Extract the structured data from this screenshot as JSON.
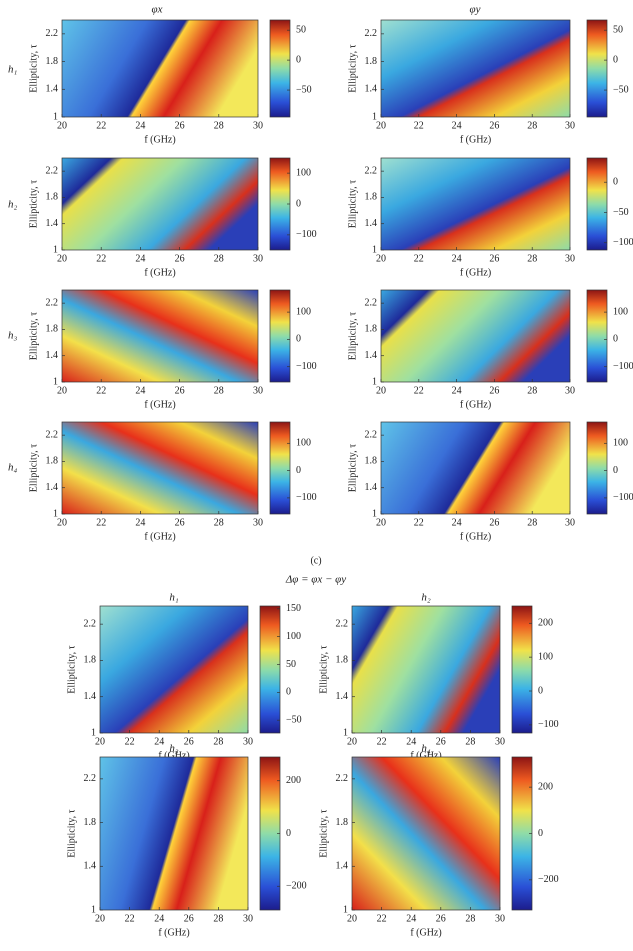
{
  "column_titles": [
    "φx",
    "φy"
  ],
  "row_labels": [
    "h₁",
    "h₂",
    "h₃",
    "h₄"
  ],
  "caption": "(c)",
  "delta_title": "Δφ = φx − φy",
  "chart_data": [
    {
      "type": "heatmap",
      "xlabel": "f (GHz)",
      "ylabel": "Ellipticity, τ",
      "xlim": [
        20,
        30
      ],
      "ylim": [
        1,
        2.4
      ],
      "xticks": [
        20,
        22,
        24,
        26,
        28,
        30
      ],
      "yticks": [
        1,
        1.4,
        1.8,
        2.2
      ],
      "clim": [
        -95,
        67
      ],
      "cticks": [
        50,
        0,
        {
          "value": -50,
          "label": "−50"
        }
      ]
    },
    {
      "type": "heatmap",
      "xlabel": "f (GHz)",
      "ylabel": "Ellipticity, τ",
      "xlim": [
        20,
        30
      ],
      "ylim": [
        1,
        2.4
      ],
      "xticks": [
        20,
        22,
        24,
        26,
        28,
        30
      ],
      "yticks": [
        1,
        1.4,
        1.8,
        2.2
      ],
      "clim": [
        -95,
        67
      ],
      "cticks": [
        50,
        0,
        {
          "value": -50,
          "label": "−50"
        }
      ]
    },
    {
      "type": "heatmap",
      "xlabel": "f (GHz)",
      "ylabel": "Ellipticity, τ",
      "xlim": [
        20,
        30
      ],
      "ylim": [
        1,
        2.4
      ],
      "xticks": [
        20,
        22,
        24,
        26,
        28,
        30
      ],
      "yticks": [
        1,
        1.4,
        1.8,
        2.2
      ],
      "clim": [
        -149,
        149
      ],
      "cticks": [
        100,
        0,
        {
          "value": -100,
          "label": "−100"
        }
      ]
    },
    {
      "type": "heatmap",
      "xlabel": "f (GHz)",
      "ylabel": "Ellipticity, τ",
      "xlim": [
        20,
        30
      ],
      "ylim": [
        1,
        2.4
      ],
      "xticks": [
        20,
        22,
        24,
        26,
        28,
        30
      ],
      "yticks": [
        1,
        1.4,
        1.8,
        2.2
      ],
      "clim": [
        -112,
        40
      ],
      "cticks": [
        0,
        {
          "value": -50,
          "label": "−50"
        },
        {
          "value": -100,
          "label": "−100"
        }
      ]
    },
    {
      "type": "heatmap",
      "xlabel": "f (GHz)",
      "ylabel": "Ellipticity, τ",
      "xlim": [
        20,
        30
      ],
      "ylim": [
        1,
        2.4
      ],
      "xticks": [
        20,
        22,
        24,
        26,
        28,
        30
      ],
      "yticks": [
        1,
        1.4,
        1.8,
        2.2
      ],
      "clim": [
        -156,
        181
      ],
      "cticks": [
        100,
        0,
        {
          "value": -100,
          "label": "−100"
        }
      ]
    },
    {
      "type": "heatmap",
      "xlabel": "f (GHz)",
      "ylabel": "Ellipticity, τ",
      "xlim": [
        20,
        30
      ],
      "ylim": [
        1,
        2.4
      ],
      "xticks": [
        20,
        22,
        24,
        26,
        28,
        30
      ],
      "yticks": [
        1,
        1.4,
        1.8,
        2.2
      ],
      "clim": [
        -156,
        181
      ],
      "cticks": [
        100,
        0,
        {
          "value": -100,
          "label": "−100"
        }
      ]
    },
    {
      "type": "heatmap",
      "xlabel": "f (GHz)",
      "ylabel": "Ellipticity, τ",
      "xlim": [
        20,
        30
      ],
      "ylim": [
        1,
        2.4
      ],
      "xticks": [
        20,
        22,
        24,
        26,
        28,
        30
      ],
      "yticks": [
        1,
        1.4,
        1.8,
        2.2
      ],
      "clim": [
        -159,
        178
      ],
      "cticks": [
        100,
        0,
        {
          "value": -100,
          "label": "−100"
        }
      ]
    },
    {
      "type": "heatmap",
      "xlabel": "f (GHz)",
      "ylabel": "Ellipticity, τ",
      "xlim": [
        20,
        30
      ],
      "ylim": [
        1,
        2.4
      ],
      "xticks": [
        20,
        22,
        24,
        26,
        28,
        30
      ],
      "yticks": [
        1,
        1.4,
        1.8,
        2.2
      ],
      "clim": [
        -159,
        178
      ],
      "cticks": [
        100,
        0,
        {
          "value": -100,
          "label": "−100"
        }
      ]
    },
    {
      "type": "heatmap",
      "title": "h₁",
      "xlabel": "f (GHz)",
      "ylabel": "Ellipticity, τ",
      "xlim": [
        20,
        30
      ],
      "ylim": [
        1,
        2.4
      ],
      "xticks": [
        20,
        22,
        24,
        26,
        28,
        30
      ],
      "yticks": [
        1,
        1.4,
        1.8,
        2.2
      ],
      "clim": [
        -73,
        155
      ],
      "cticks": [
        150,
        100,
        50,
        0,
        {
          "value": -50,
          "label": "−50"
        }
      ]
    },
    {
      "type": "heatmap",
      "title": "h₂",
      "xlabel": "f (GHz)",
      "ylabel": "Ellipticity, τ",
      "xlim": [
        20,
        30
      ],
      "ylim": [
        1,
        2.4
      ],
      "xticks": [
        20,
        22,
        24,
        26,
        28,
        30
      ],
      "yticks": [
        1,
        1.4,
        1.8,
        2.2
      ],
      "clim": [
        -124,
        251
      ],
      "cticks": [
        200,
        100,
        0,
        {
          "value": -100,
          "label": "−100"
        }
      ]
    },
    {
      "type": "heatmap",
      "title": "h₃",
      "xlabel": "f (GHz)",
      "ylabel": "Ellipticity, τ",
      "xlim": [
        20,
        30
      ],
      "ylim": [
        1,
        2.4
      ],
      "xticks": [
        20,
        22,
        24,
        26,
        28,
        30
      ],
      "yticks": [
        1,
        1.4,
        1.8,
        2.2
      ],
      "clim": [
        -290,
        290
      ],
      "cticks": [
        200,
        0,
        {
          "value": -200,
          "label": "−200"
        }
      ]
    },
    {
      "type": "heatmap",
      "title": "h₄",
      "xlabel": "f (GHz)",
      "ylabel": "Ellipticity, τ",
      "xlim": [
        20,
        30
      ],
      "ylim": [
        1,
        2.4
      ],
      "xticks": [
        20,
        22,
        24,
        26,
        28,
        30
      ],
      "yticks": [
        1,
        1.4,
        1.8,
        2.2
      ],
      "clim": [
        -330,
        330
      ],
      "cticks": [
        200,
        0,
        {
          "value": -200,
          "label": "−200"
        }
      ]
    }
  ]
}
